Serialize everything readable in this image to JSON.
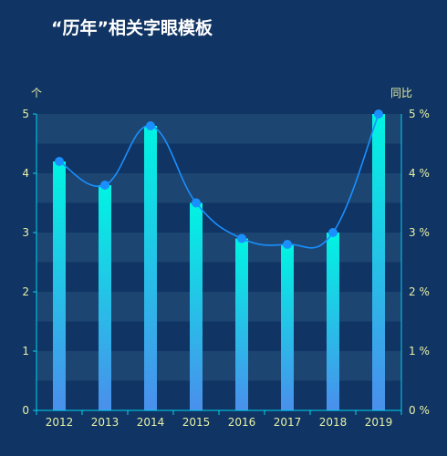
{
  "chart_data": {
    "type": "bar",
    "title": "“历年”相关字眼模板",
    "categories": [
      "2012",
      "2013",
      "2014",
      "2015",
      "2016",
      "2017",
      "2018",
      "2019"
    ],
    "series": [
      {
        "type": "bar",
        "values": [
          4.2,
          3.8,
          4.8,
          3.5,
          2.9,
          2.8,
          3.0,
          5.0
        ],
        "axis": "left"
      },
      {
        "type": "line",
        "smooth": true,
        "values": [
          4.2,
          3.8,
          4.8,
          3.5,
          2.9,
          2.8,
          3.0,
          5.0
        ],
        "axis": "right"
      }
    ],
    "y_left": {
      "label": "个",
      "ylim": [
        0,
        5
      ],
      "ticks": [
        "0",
        "1",
        "2",
        "3",
        "4",
        "5"
      ]
    },
    "y_right": {
      "label": "同比",
      "ylim": [
        0,
        5
      ],
      "ticks": [
        "0 %",
        "1 %",
        "2 %",
        "3 %",
        "4 %",
        "5 %"
      ]
    },
    "grid": "alternating horizontal bands",
    "colors": {
      "background": "#103463",
      "band": "#1c4571",
      "bar_top": "#00f4e2",
      "bar_bottom": "#4a8fec",
      "line": "#1a8fff",
      "point": "#1a8fff",
      "axis_text": "#e8f1a6",
      "axis_line": "#00d5f0",
      "title": "#ffffff"
    }
  }
}
